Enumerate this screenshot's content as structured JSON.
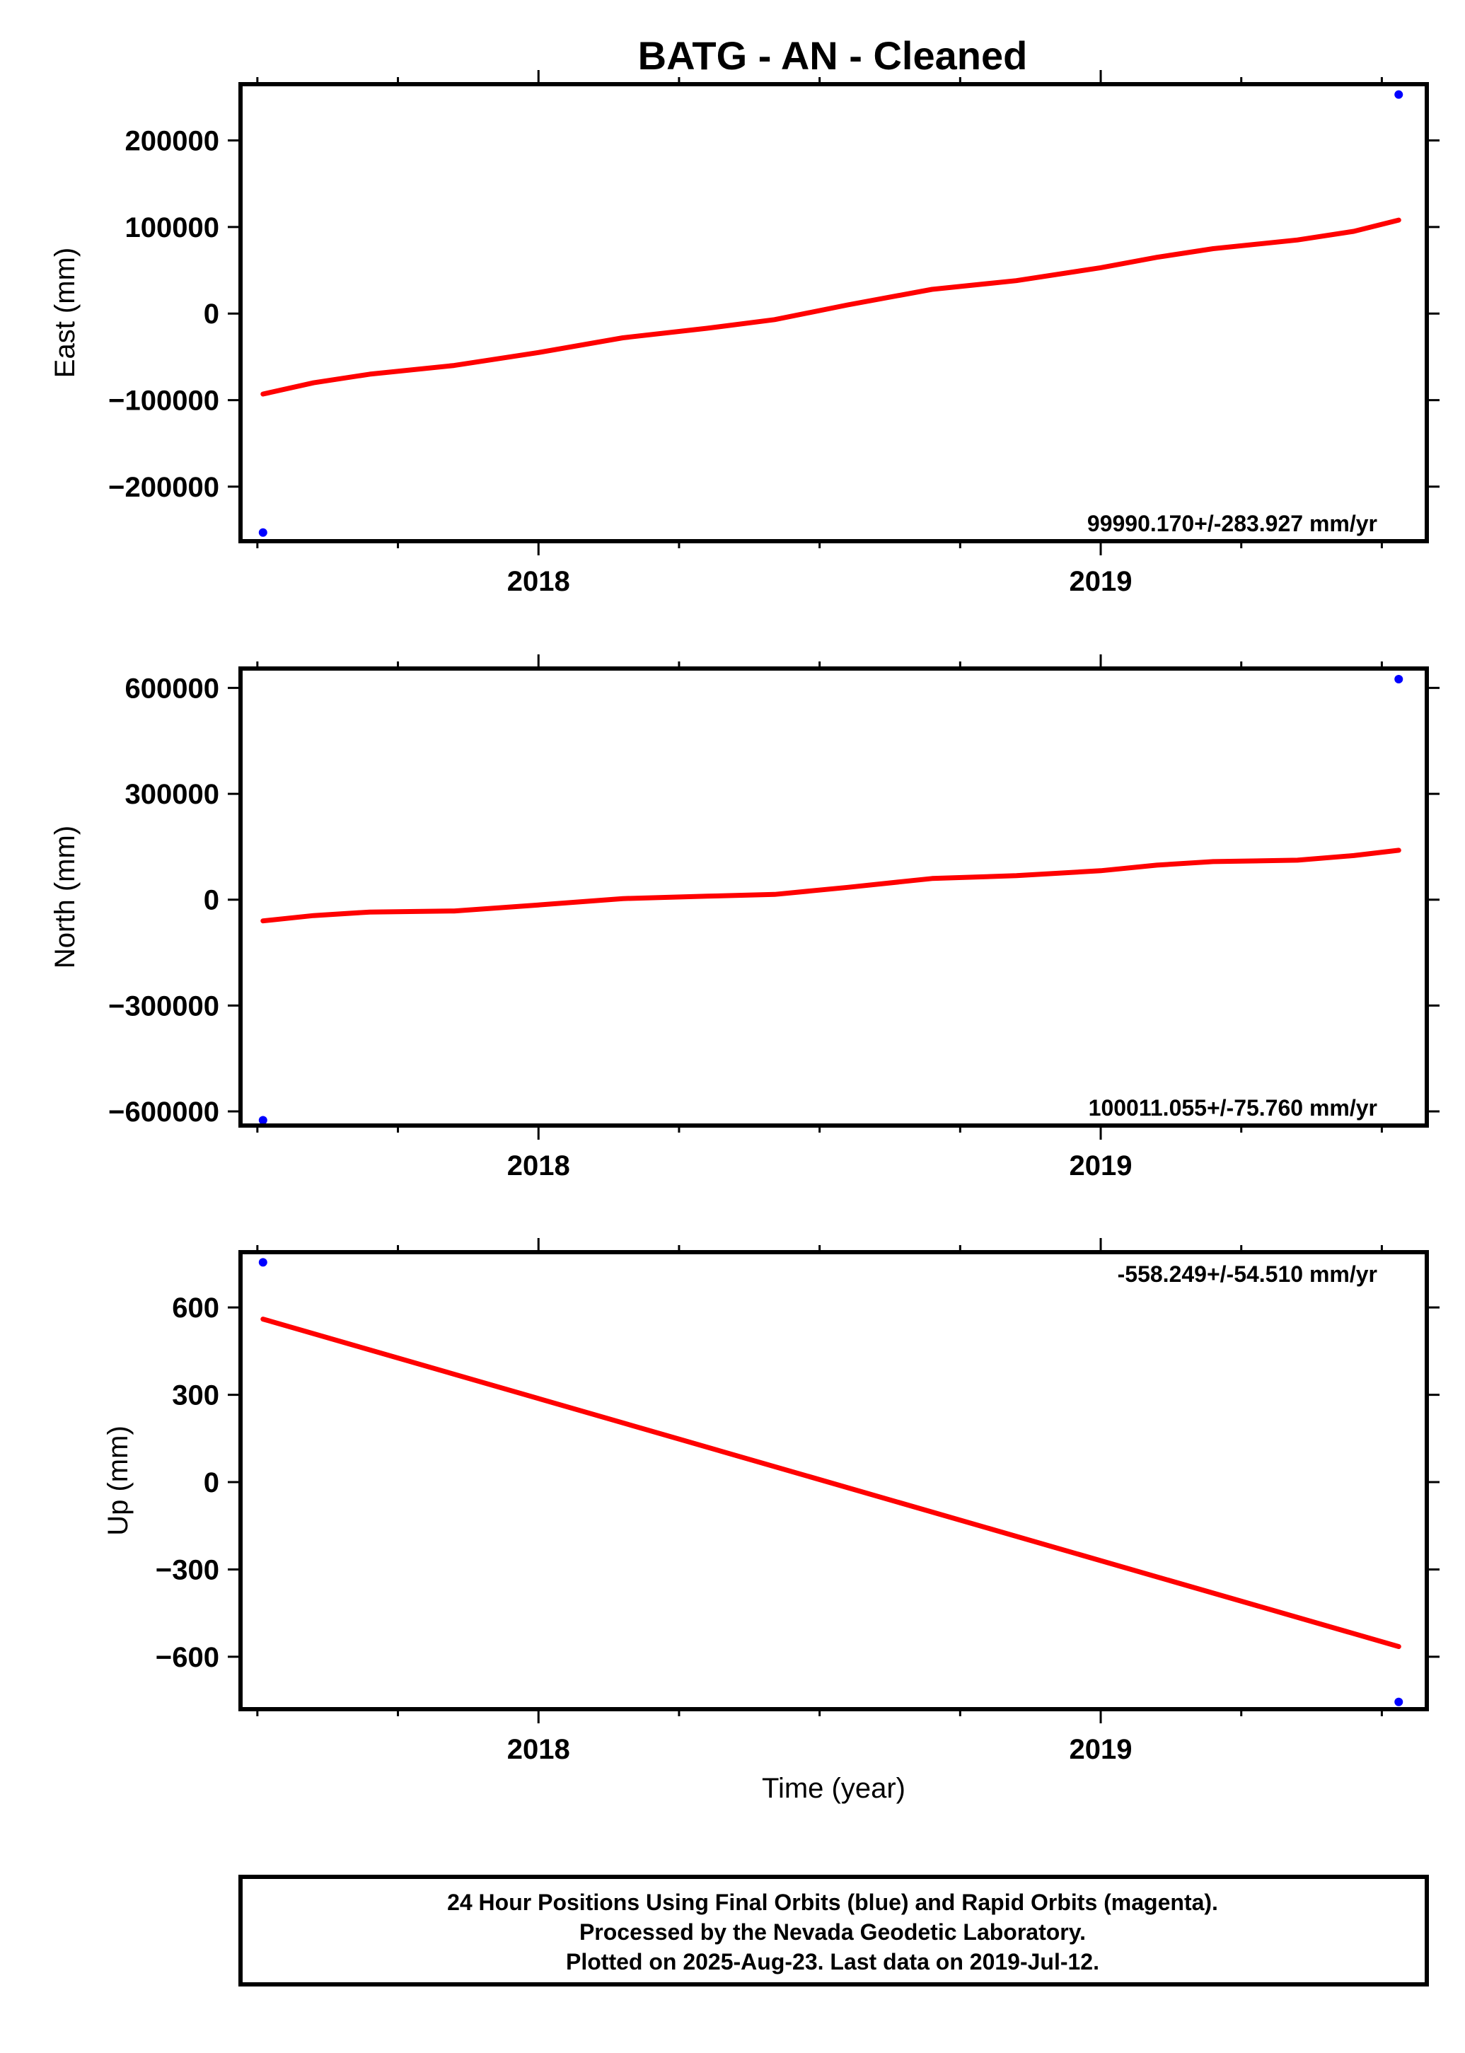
{
  "chart_data": {
    "type": "line",
    "title": "BATG  - AN - Cleaned",
    "xlabel": "Time (year)",
    "xlim": [
      2017.47,
      2019.58
    ],
    "x_ticks": [
      2018,
      2019
    ],
    "x_tick_labels": [
      "2018",
      "2019"
    ],
    "x_minor_ticks": [
      2017.5,
      2017.75,
      2018.25,
      2018.5,
      2018.75,
      2019.25,
      2019.5
    ],
    "colors": {
      "fit": "#ff0000",
      "final_orbits": "#0000ff",
      "rapid_orbits": "#ff00ff"
    },
    "panels": [
      {
        "id": "east",
        "ylabel": "East (mm)",
        "ylim": [
          -263000,
          265000
        ],
        "y_ticks": [
          -200000,
          -100000,
          0,
          100000,
          200000
        ],
        "y_tick_labels": [
          "−200000",
          "−100000",
          "0",
          "100000",
          "200000"
        ],
        "rate_label": "99990.170+/-283.927 mm/yr",
        "rate_position": "bottom-right",
        "points": {
          "x": [
            2017.51,
            2019.53
          ],
          "y": [
            -253000,
            253000
          ]
        },
        "fit": {
          "x": [
            2017.51,
            2017.6,
            2017.7,
            2017.85,
            2018.0,
            2018.15,
            2018.3,
            2018.42,
            2018.55,
            2018.7,
            2018.85,
            2019.0,
            2019.1,
            2019.2,
            2019.35,
            2019.45,
            2019.53
          ],
          "y": [
            -93000,
            -80000,
            -70000,
            -60000,
            -45000,
            -28000,
            -17000,
            -7000,
            10000,
            28000,
            38000,
            53000,
            65000,
            75000,
            85000,
            95000,
            108000
          ]
        }
      },
      {
        "id": "north",
        "ylabel": "North (mm)",
        "ylim": [
          -640000,
          655000
        ],
        "y_ticks": [
          -600000,
          -300000,
          0,
          300000,
          600000
        ],
        "y_tick_labels": [
          "−600000",
          "−300000",
          "0",
          "300000",
          "600000"
        ],
        "rate_label": "100011.055+/-75.760 mm/yr",
        "rate_position": "bottom-right",
        "points": {
          "x": [
            2017.51,
            2019.53
          ],
          "y": [
            -625000,
            625000
          ]
        },
        "fit": {
          "x": [
            2017.51,
            2017.6,
            2017.7,
            2017.85,
            2018.0,
            2018.15,
            2018.3,
            2018.42,
            2018.55,
            2018.7,
            2018.85,
            2019.0,
            2019.1,
            2019.2,
            2019.35,
            2019.45,
            2019.53
          ],
          "y": [
            -60000,
            -45000,
            -35000,
            -32000,
            -15000,
            3000,
            10000,
            15000,
            35000,
            60000,
            68000,
            82000,
            98000,
            108000,
            112000,
            125000,
            140000
          ]
        }
      },
      {
        "id": "up",
        "ylabel": "Up (mm)",
        "ylim": [
          -780,
          790
        ],
        "y_ticks": [
          -600,
          -300,
          0,
          300,
          600
        ],
        "y_tick_labels": [
          "−600",
          "−300",
          "0",
          "300",
          "600"
        ],
        "rate_label": "-558.249+/-54.510 mm/yr",
        "rate_position": "top-right",
        "points": {
          "x": [
            2017.51,
            2019.53
          ],
          "y": [
            755,
            -755
          ]
        },
        "fit": {
          "x": [
            2017.51,
            2019.53
          ],
          "y": [
            560,
            -565
          ]
        }
      }
    ],
    "footer": [
      "24 Hour Positions Using Final Orbits (blue) and Rapid Orbits (magenta).",
      "Processed by the Nevada Geodetic Laboratory.",
      "Plotted on 2025-Aug-23. Last data on 2019-Jul-12."
    ]
  }
}
